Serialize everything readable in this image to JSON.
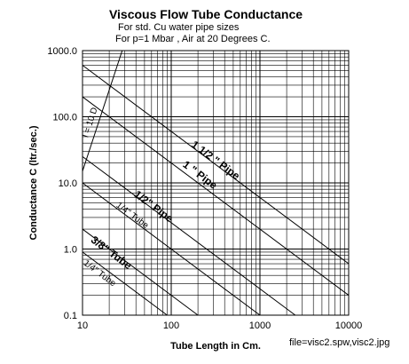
{
  "chart_data": {
    "type": "line",
    "title": "Viscous Flow Tube Conductance",
    "subtitle": [
      "For std. Cu water pipe sizes",
      "For p=1 Mbar , Air at 20 Degrees C."
    ],
    "xlabel": "Tube Length in Cm.",
    "ylabel": "Conductance C (ltr./sec.)",
    "x_scale": "log",
    "y_scale": "log",
    "xlim": [
      10,
      10000
    ],
    "ylim": [
      0.1,
      1000
    ],
    "x_ticks": [
      "10",
      "100",
      "1000",
      "10000"
    ],
    "y_ticks": [
      "0.1",
      "1.0",
      "10.0",
      "100.0",
      "1000.0"
    ],
    "grid": true,
    "series": [
      {
        "name": "1 1/2 \" Pipe",
        "points": [
          [
            10,
            600
          ],
          [
            10000,
            0.6
          ]
        ],
        "label_at": [
          300,
          20
        ]
      },
      {
        "name": "1 \" Pipe",
        "points": [
          [
            10,
            200
          ],
          [
            10000,
            0.2
          ]
        ],
        "label_at": [
          200,
          12
        ]
      },
      {
        "name": "1/2\" Pipe",
        "points": [
          [
            10,
            25
          ],
          [
            2500,
            0.1
          ]
        ],
        "label_at": [
          60,
          4
        ]
      },
      {
        "name": "1/4\" Tube",
        "points": [
          [
            10,
            10
          ],
          [
            1000,
            0.1
          ]
        ],
        "label_at": [
          35,
          3
        ]
      },
      {
        "name": "3/8\" Tube",
        "points": [
          [
            10,
            2
          ],
          [
            200,
            0.1
          ]
        ],
        "label_at": [
          20,
          0.8
        ]
      },
      {
        "name": "1/4\" Tube",
        "points": [
          [
            10,
            0.9
          ],
          [
            90,
            0.1
          ]
        ],
        "label_at": [
          15,
          0.4
        ]
      },
      {
        "name": "l = 10 D",
        "points": [
          [
            10,
            15
          ],
          [
            28,
            1000
          ]
        ],
        "label_at": [
          13,
          80
        ]
      }
    ]
  },
  "footnote": "file=visc2.spw,visc2.jpg"
}
